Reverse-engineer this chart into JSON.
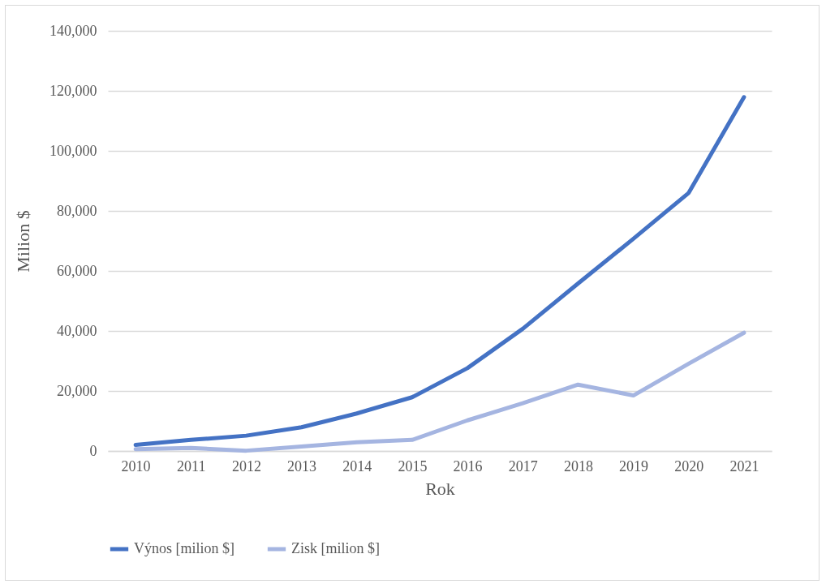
{
  "chart_data": {
    "type": "line",
    "xlabel": "Rok",
    "ylabel": "Milion $",
    "categories": [
      "2010",
      "2011",
      "2012",
      "2013",
      "2014",
      "2015",
      "2016",
      "2017",
      "2018",
      "2019",
      "2020",
      "2021"
    ],
    "series": [
      {
        "name": "Výnos [milion $]",
        "color": "#4472c4",
        "values": [
          2000,
          3700,
          5100,
          7900,
          12500,
          17900,
          27600,
          40700,
          55800,
          70700,
          86000,
          117900
        ]
      },
      {
        "name": "Zisk [milion $]",
        "color": "#a5b5e1",
        "values": [
          600,
          1000,
          100,
          1500,
          2900,
          3700,
          10200,
          15900,
          22100,
          18500,
          29100,
          39400
        ]
      }
    ],
    "ylim": [
      0,
      140000
    ],
    "yticks": [
      0,
      {
        "value": 20000,
        "label": "20,000"
      },
      {
        "value": 40000,
        "label": "40,000"
      },
      {
        "value": 60000,
        "label": "60,000"
      },
      {
        "value": 80000,
        "label": "80,000"
      },
      {
        "value": 100000,
        "label": "100,000"
      },
      {
        "value": 120000,
        "label": "120,000"
      },
      {
        "value": 140000,
        "label": "140,000"
      }
    ],
    "grid": "y",
    "legend": "bottom",
    "line_style": "solid"
  }
}
